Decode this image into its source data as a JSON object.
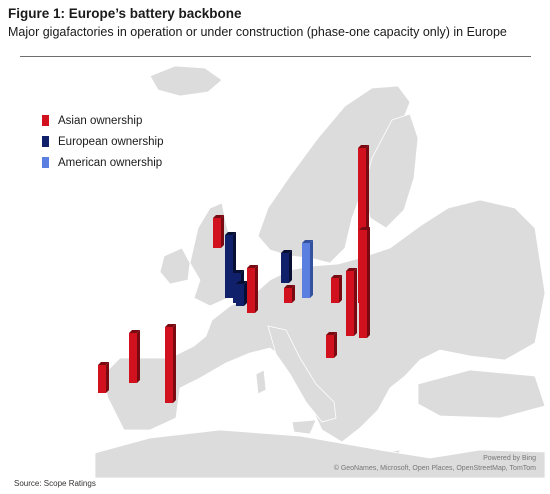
{
  "header": {
    "title": "Figure 1: Europe’s battery backbone",
    "subtitle": "Major gigafactories in operation or under construction (phase-one capacity only) in Europe"
  },
  "legend": [
    {
      "label": "Asian ownership",
      "color": "#d2111f"
    },
    {
      "label": "European ownership",
      "color": "#10206a"
    },
    {
      "label": "American ownership",
      "color": "#5b7fe0"
    }
  ],
  "map_attribution": {
    "powered_by": "Powered by Bing",
    "credits": "© GeoNames, Microsoft, Open Places, OpenStreetMap, TomTom"
  },
  "source": "Source: Scope Ratings",
  "chart_data": {
    "type": "bar",
    "title": "Figure 1: Europe’s battery backbone",
    "subtitle": "Major gigafactories in operation or under construction (phase-one capacity only) in Europe",
    "base": "map of Europe",
    "legend_position": "top-left",
    "series": [
      {
        "name": "Asian ownership",
        "values": [
          2.8,
          5,
          7.6,
          3,
          4.5,
          1.5,
          2.3,
          2.5,
          15.5,
          6.5,
          10.8
        ]
      },
      {
        "name": "European ownership",
        "values": [
          6.3,
          3,
          2.2,
          3
        ]
      },
      {
        "name": "American ownership",
        "values": [
          5.5
        ]
      }
    ],
    "value_unit": "relative capacity (unlabelled)"
  }
}
